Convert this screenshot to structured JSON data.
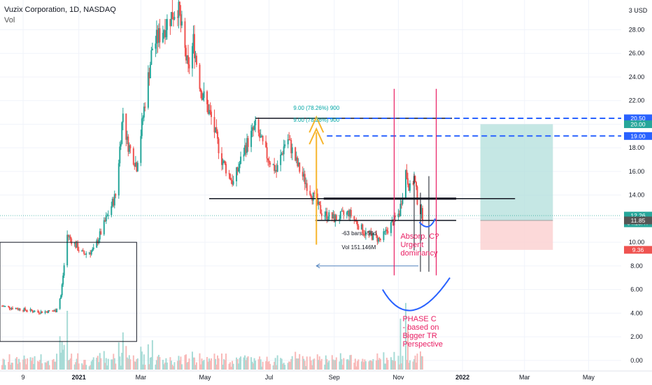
{
  "header": {
    "symbol_line": "Vuzix Corporation, 1D, NASDAQ",
    "indicator": "Vol"
  },
  "currency_label": "3 USD",
  "colors": {
    "up": "#26a69a",
    "down": "#ef5350",
    "crimson": "#e91e63",
    "blue": "#2962ff",
    "orange": "#f7b52c",
    "teal_zone": "#b2dfdb",
    "red_zone": "#fbd2d2"
  },
  "chart_data": {
    "type": "candlestick",
    "title": "Vuzix Corporation, 1D, NASDAQ",
    "ylim": [
      -0.9,
      30.4
    ],
    "yticks": [
      0,
      2,
      4,
      6,
      8,
      10,
      12,
      14,
      16,
      18,
      20,
      22,
      24,
      26,
      28
    ],
    "ytick_labels": [
      "0.00",
      "2.00",
      "4.00",
      "6.00",
      "8.00",
      "10.00",
      "12.00",
      "14.00",
      "16.00",
      "18.00",
      "20.00",
      "22.00",
      "24.00",
      "26.00",
      "28.00"
    ],
    "xticks": [
      {
        "label": "9",
        "date": "2020-11-09"
      },
      {
        "label": "2021",
        "date": "2021-01-01",
        "bold": true
      },
      {
        "label": "Mar",
        "date": "2021-03-01"
      },
      {
        "label": "May",
        "date": "2021-05-01"
      },
      {
        "label": "Jul",
        "date": "2021-07-01"
      },
      {
        "label": "Sep",
        "date": "2021-09-01"
      },
      {
        "label": "Nov",
        "date": "2021-11-01"
      },
      {
        "label": "2022",
        "date": "2022-01-01",
        "bold": true
      },
      {
        "label": "Mar",
        "date": "2022-03-01"
      },
      {
        "label": "May",
        "date": "2022-05-01"
      }
    ],
    "price_path": [
      [
        "2020-10-20",
        4.6
      ],
      [
        "2020-11-09",
        4.3
      ],
      [
        "2020-11-25",
        4.1
      ],
      [
        "2020-12-10",
        4.2
      ],
      [
        "2020-12-15",
        5.5
      ],
      [
        "2020-12-21",
        10.6
      ],
      [
        "2021-01-05",
        9.0
      ],
      [
        "2021-01-15",
        9.3
      ],
      [
        "2021-01-25",
        11.5
      ],
      [
        "2021-02-05",
        14.0
      ],
      [
        "2021-02-12",
        21.0
      ],
      [
        "2021-02-16",
        18.5
      ],
      [
        "2021-02-25",
        16.5
      ],
      [
        "2021-03-05",
        22.0
      ],
      [
        "2021-03-12",
        26.5
      ],
      [
        "2021-03-25",
        28.5
      ],
      [
        "2021-04-05",
        30.0
      ],
      [
        "2021-04-15",
        24.5
      ],
      [
        "2021-04-20",
        27.0
      ],
      [
        "2021-04-27",
        23.0
      ],
      [
        "2021-05-07",
        20.5
      ],
      [
        "2021-05-17",
        17.0
      ],
      [
        "2021-05-28",
        15.0
      ],
      [
        "2021-06-08",
        18.0
      ],
      [
        "2021-06-18",
        19.8
      ],
      [
        "2021-06-28",
        17.5
      ],
      [
        "2021-07-08",
        16.0
      ],
      [
        "2021-07-18",
        19.0
      ],
      [
        "2021-07-28",
        16.5
      ],
      [
        "2021-08-08",
        14.5
      ],
      [
        "2021-08-20",
        12.5
      ],
      [
        "2021-09-01",
        12.0
      ],
      [
        "2021-09-15",
        12.5
      ],
      [
        "2021-09-30",
        10.8
      ],
      [
        "2021-10-15",
        10.2
      ],
      [
        "2021-10-25",
        11.5
      ],
      [
        "2021-11-02",
        12.5
      ],
      [
        "2021-11-08",
        16.0
      ],
      [
        "2021-11-12",
        14.5
      ],
      [
        "2021-11-16",
        15.5
      ],
      [
        "2021-11-20",
        13.0
      ],
      [
        "2021-11-24",
        12.3
      ]
    ],
    "price_labels": [
      {
        "value": 20.5,
        "text": "20.50",
        "bg": "#2962ff"
      },
      {
        "value": 20.0,
        "text": "20.00",
        "bg": "#26a69a"
      },
      {
        "value": 19.0,
        "text": "19.00",
        "bg": "#2962ff"
      },
      {
        "value": 12.26,
        "text": "12.26",
        "sub": "04:18:47",
        "bg": "#26a69a"
      },
      {
        "value": 11.85,
        "text": "11.85",
        "bg": "#555555"
      },
      {
        "value": 9.36,
        "text": "9.36",
        "bg": "#ef5350"
      }
    ],
    "annotations": {
      "fib_upper": "9.00 (78.26%) 900",
      "fib_lower": "9.00 (78.26%) 900",
      "bars_range": "-63 bars, -58d",
      "volume_range": "Vol 151.146M",
      "absorption": [
        "Absorp.  C?",
        "Urgent",
        "dominancy"
      ],
      "phase": [
        "PHASE C",
        "- based on",
        "Bigger TR",
        "Perspective"
      ]
    },
    "levels": {
      "resistance_top": 20.5,
      "blue_dash_1": 20.5,
      "blue_dash_2": 19.0,
      "tr_mid": 13.7,
      "tr_low": 11.85,
      "current": 12.26
    },
    "position": {
      "start": "2022-01-18",
      "end": "2022-03-28",
      "entry": 11.85,
      "target": 20.0,
      "stop": 9.36
    }
  }
}
